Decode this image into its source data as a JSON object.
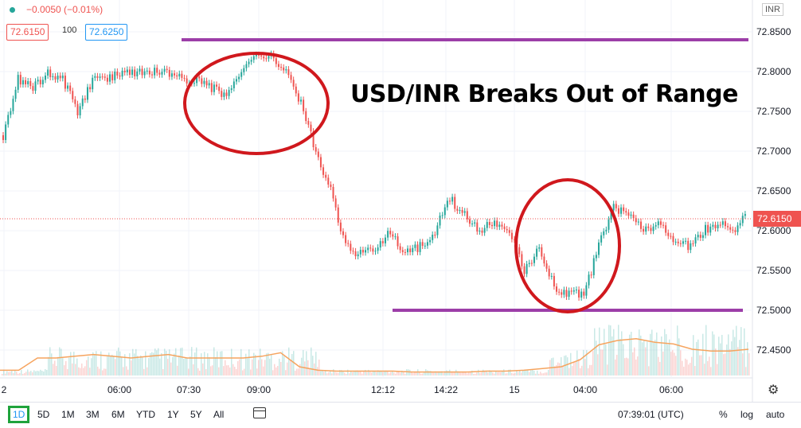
{
  "legend": {
    "change": "−0.0050 (−0.01%)"
  },
  "quote": {
    "bid": "72.6150",
    "spread": "100",
    "ask": "72.6250"
  },
  "currency_badge": "INR",
  "headline": "USD/INR Breaks Out of Range",
  "colors": {
    "up": "#26a69a",
    "down": "#ef5350",
    "resistance_line": "#9c3ea8",
    "circle": "#d0181d",
    "volume_ma": "#f6a45f",
    "last_price": "#ef5350"
  },
  "chart_data": {
    "type": "candlestick",
    "title": "USD/INR Breaks Out of Range",
    "xlabel": "",
    "ylabel": "",
    "x_ticks": [
      "2",
      "06:00",
      "07:30",
      "09:00",
      "12:12",
      "14:22",
      "15",
      "04:00",
      "06:00"
    ],
    "y_ticks": [
      "72.4500",
      "72.5000",
      "72.5500",
      "72.6000",
      "72.6500",
      "72.7000",
      "72.7500",
      "72.8000",
      "72.8500"
    ],
    "ylim": [
      72.415,
      72.89
    ],
    "last_price": 72.615,
    "last_price_label": "72.6150",
    "close_series": [
      72.72,
      72.79,
      72.78,
      72.8,
      72.79,
      72.75,
      72.79,
      72.79,
      72.8,
      72.8,
      72.8,
      72.8,
      72.79,
      72.79,
      72.78,
      72.77,
      72.8,
      72.82,
      72.82,
      72.8,
      72.76,
      72.7,
      72.65,
      72.58,
      72.57,
      72.58,
      72.6,
      72.57,
      72.58,
      72.6,
      72.64,
      72.62,
      72.6,
      72.61,
      72.6,
      72.55,
      72.58,
      72.53,
      72.52,
      72.52,
      72.58,
      72.63,
      72.62,
      72.6,
      72.61,
      72.59,
      72.58,
      72.6,
      72.61,
      72.6,
      72.62
    ],
    "volume_ma": [
      0.06,
      0.06,
      0.2,
      0.2,
      0.22,
      0.24,
      0.22,
      0.2,
      0.22,
      0.24,
      0.2,
      0.2,
      0.2,
      0.2,
      0.22,
      0.26,
      0.1,
      0.06,
      0.05,
      0.05,
      0.05,
      0.05,
      0.04,
      0.04,
      0.04,
      0.04,
      0.05,
      0.05,
      0.06,
      0.08,
      0.1,
      0.18,
      0.35,
      0.4,
      0.42,
      0.38,
      0.36,
      0.3,
      0.28,
      0.28,
      0.3
    ],
    "levels": [
      {
        "name": "range-top",
        "value": 72.84
      },
      {
        "name": "range-bottom",
        "value": 72.5
      }
    ],
    "grid": true
  },
  "toolbar": {
    "ranges": [
      "1D",
      "5D",
      "1M",
      "3M",
      "6M",
      "YTD",
      "1Y",
      "5Y",
      "All"
    ],
    "active_range": "1D",
    "clock": "07:39:01 (UTC)",
    "percent": "%",
    "log": "log",
    "auto": "auto"
  }
}
